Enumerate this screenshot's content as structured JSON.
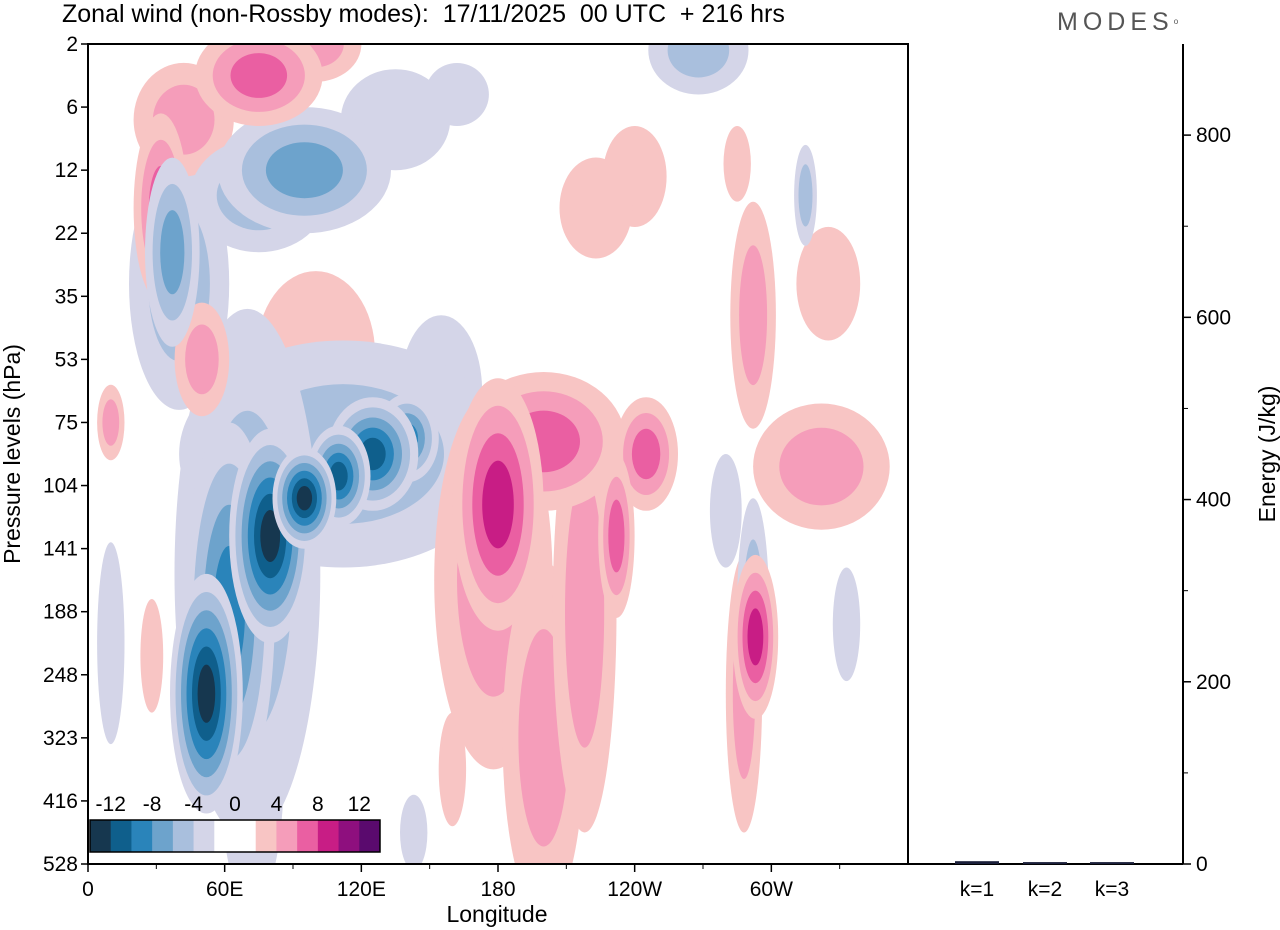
{
  "header": {
    "title": "Zonal wind (non-Rossby modes):  17/11/2025  00 UTC  + 216 hrs",
    "logo": "MODES"
  },
  "chart_data": [
    {
      "type": "heatmap",
      "title": "Zonal wind (non-Rossby modes):  17/11/2025  00 UTC  + 216 hrs",
      "xlabel": "Longitude",
      "ylabel": "Pressure levels (hPa)",
      "x_ticks": [
        "0",
        "60E",
        "120E",
        "180",
        "120W",
        "60W"
      ],
      "y_ticks": [
        "2",
        "6",
        "12",
        "22",
        "35",
        "53",
        "75",
        "104",
        "141",
        "188",
        "248",
        "323",
        "416",
        "528"
      ],
      "colorbar": {
        "labels": [
          "-12",
          "-8",
          "-4",
          "0",
          "4",
          "8",
          "12"
        ],
        "colors": [
          "#16374f",
          "#0f5f8c",
          "#2a84ba",
          "#6da3cc",
          "#a9bfdd",
          "#d4d5e8",
          "#ffffff",
          "#ffffff",
          "#f8c5c4",
          "#f59dba",
          "#ea5fa2",
          "#c81d85",
          "#8e0f7e",
          "#5a0a6e"
        ]
      },
      "blobs": [
        {
          "lon": 52,
          "level": 10.3,
          "rlon": 16,
          "rlev": 1.9,
          "value": -11
        },
        {
          "lon": 62,
          "level": 9.0,
          "rlon": 20,
          "rlev": 3.0,
          "value": -7
        },
        {
          "lon": 70,
          "level": 8.4,
          "rlon": 32,
          "rlev": 4.2,
          "value": -4
        },
        {
          "lon": 80,
          "level": 7.8,
          "rlon": 18,
          "rlev": 1.7,
          "value": -11
        },
        {
          "lon": 95,
          "level": 7.2,
          "rlon": 14,
          "rlev": 0.8,
          "value": -11
        },
        {
          "lon": 110,
          "level": 6.85,
          "rlon": 14,
          "rlev": 0.8,
          "value": -10
        },
        {
          "lon": 125,
          "level": 6.5,
          "rlon": 20,
          "rlev": 0.9,
          "value": -9
        },
        {
          "lon": 140,
          "level": 6.25,
          "rlon": 14,
          "rlev": 0.7,
          "value": -7
        },
        {
          "lon": 112,
          "level": 6.5,
          "rlon": 72,
          "rlev": 1.8,
          "value": -3
        },
        {
          "lon": 155,
          "level": 5.5,
          "rlon": 18,
          "rlev": 1.2,
          "value": -2
        },
        {
          "lon": 72,
          "level": 11.5,
          "rlon": 14,
          "rlev": 2.2,
          "value": -2
        },
        {
          "lon": 10,
          "level": 9.5,
          "rlon": 6,
          "rlev": 1.6,
          "value": -2
        },
        {
          "lon": 37,
          "level": 3.3,
          "rlon": 12,
          "rlev": 1.5,
          "value": -6
        },
        {
          "lon": 40,
          "level": 3.8,
          "rlon": 22,
          "rlev": 2.0,
          "value": -3
        },
        {
          "lon": 75,
          "level": 2.4,
          "rlon": 30,
          "rlev": 0.9,
          "value": -4
        },
        {
          "lon": 95,
          "level": 2.0,
          "rlon": 38,
          "rlev": 1.0,
          "value": -5
        },
        {
          "lon": 135,
          "level": 1.2,
          "rlon": 24,
          "rlev": 0.8,
          "value": -2
        },
        {
          "lon": 162,
          "level": 0.8,
          "rlon": 14,
          "rlev": 0.5,
          "value": -2
        },
        {
          "lon": 268,
          "level": 0.1,
          "rlon": 22,
          "rlev": 0.7,
          "value": -3
        },
        {
          "lon": 315,
          "level": 2.4,
          "rlon": 5,
          "rlev": 0.8,
          "value": -3
        },
        {
          "lon": 292,
          "level": 8.9,
          "rlon": 7,
          "rlev": 1.7,
          "value": -4
        },
        {
          "lon": 280,
          "level": 7.4,
          "rlon": 7,
          "rlev": 0.9,
          "value": -2
        },
        {
          "lon": 333,
          "level": 9.2,
          "rlon": 6,
          "rlev": 0.9,
          "value": -2
        },
        {
          "lon": 195,
          "level": 8.8,
          "rlon": 7,
          "rlev": 0.8,
          "value": -2
        },
        {
          "lon": 32,
          "level": 2.6,
          "rlon": 12,
          "rlev": 1.5,
          "value": 5
        },
        {
          "lon": 42,
          "level": 1.2,
          "rlon": 22,
          "rlev": 0.9,
          "value": 3
        },
        {
          "lon": 75,
          "level": 0.5,
          "rlon": 28,
          "rlev": 0.8,
          "value": 5
        },
        {
          "lon": 100,
          "level": 0.0,
          "rlon": 20,
          "rlev": 0.6,
          "value": 3
        },
        {
          "lon": 50,
          "level": 5.0,
          "rlon": 12,
          "rlev": 0.9,
          "value": 4
        },
        {
          "lon": 85,
          "level": 5.8,
          "rlon": 36,
          "rlev": 0.6,
          "value": 2
        },
        {
          "lon": 100,
          "level": 4.9,
          "rlon": 26,
          "rlev": 1.3,
          "value": 2
        },
        {
          "lon": 180,
          "level": 7.3,
          "rlon": 20,
          "rlev": 2.0,
          "value": 8
        },
        {
          "lon": 178,
          "level": 8.5,
          "rlon": 26,
          "rlev": 3.0,
          "value": 3
        },
        {
          "lon": 200,
          "level": 6.3,
          "rlon": 36,
          "rlev": 1.1,
          "value": 5
        },
        {
          "lon": 245,
          "level": 6.5,
          "rlon": 14,
          "rlev": 0.9,
          "value": 5
        },
        {
          "lon": 200,
          "level": 11.0,
          "rlon": 18,
          "rlev": 2.8,
          "value": 3
        },
        {
          "lon": 218,
          "level": 9.0,
          "rlon": 14,
          "rlev": 3.5,
          "value": 3
        },
        {
          "lon": 232,
          "level": 7.8,
          "rlon": 8,
          "rlev": 1.3,
          "value": 5
        },
        {
          "lon": 293,
          "level": 9.4,
          "rlon": 10,
          "rlev": 1.3,
          "value": 7
        },
        {
          "lon": 288,
          "level": 10.3,
          "rlon": 8,
          "rlev": 2.2,
          "value": 3
        },
        {
          "lon": 322,
          "level": 6.7,
          "rlon": 30,
          "rlev": 1.0,
          "value": 3
        },
        {
          "lon": 292,
          "level": 4.3,
          "rlon": 10,
          "rlev": 1.8,
          "value": 3
        },
        {
          "lon": 325,
          "level": 3.8,
          "rlon": 14,
          "rlev": 0.9,
          "value": 2
        },
        {
          "lon": 240,
          "level": 2.1,
          "rlon": 14,
          "rlev": 0.8,
          "value": 2
        },
        {
          "lon": 223,
          "level": 2.6,
          "rlon": 16,
          "rlev": 0.8,
          "value": 2
        },
        {
          "lon": 285,
          "level": 1.9,
          "rlon": 6,
          "rlev": 0.6,
          "value": 2
        },
        {
          "lon": 10,
          "level": 6.0,
          "rlon": 6,
          "rlev": 0.6,
          "value": 3
        },
        {
          "lon": 28,
          "level": 9.7,
          "rlon": 5,
          "rlev": 0.9,
          "value": 2
        },
        {
          "lon": 45,
          "level": 9.5,
          "rlon": 5,
          "rlev": 0.8,
          "value": -2
        },
        {
          "lon": 143,
          "level": 12.5,
          "rlon": 6,
          "rlev": 0.6,
          "value": -2
        },
        {
          "lon": 160,
          "level": 11.5,
          "rlon": 6,
          "rlev": 0.9,
          "value": 2
        }
      ]
    },
    {
      "type": "bar",
      "categories": [
        "k=1",
        "k=2",
        "k=3"
      ],
      "values": [
        2,
        1,
        1
      ],
      "ylabel": "Energy (J/kg)",
      "ylim": [
        0,
        900
      ],
      "y_ticks": [
        "0",
        "200",
        "400",
        "600",
        "800"
      ],
      "bar_color": "#1a1f3a"
    }
  ]
}
